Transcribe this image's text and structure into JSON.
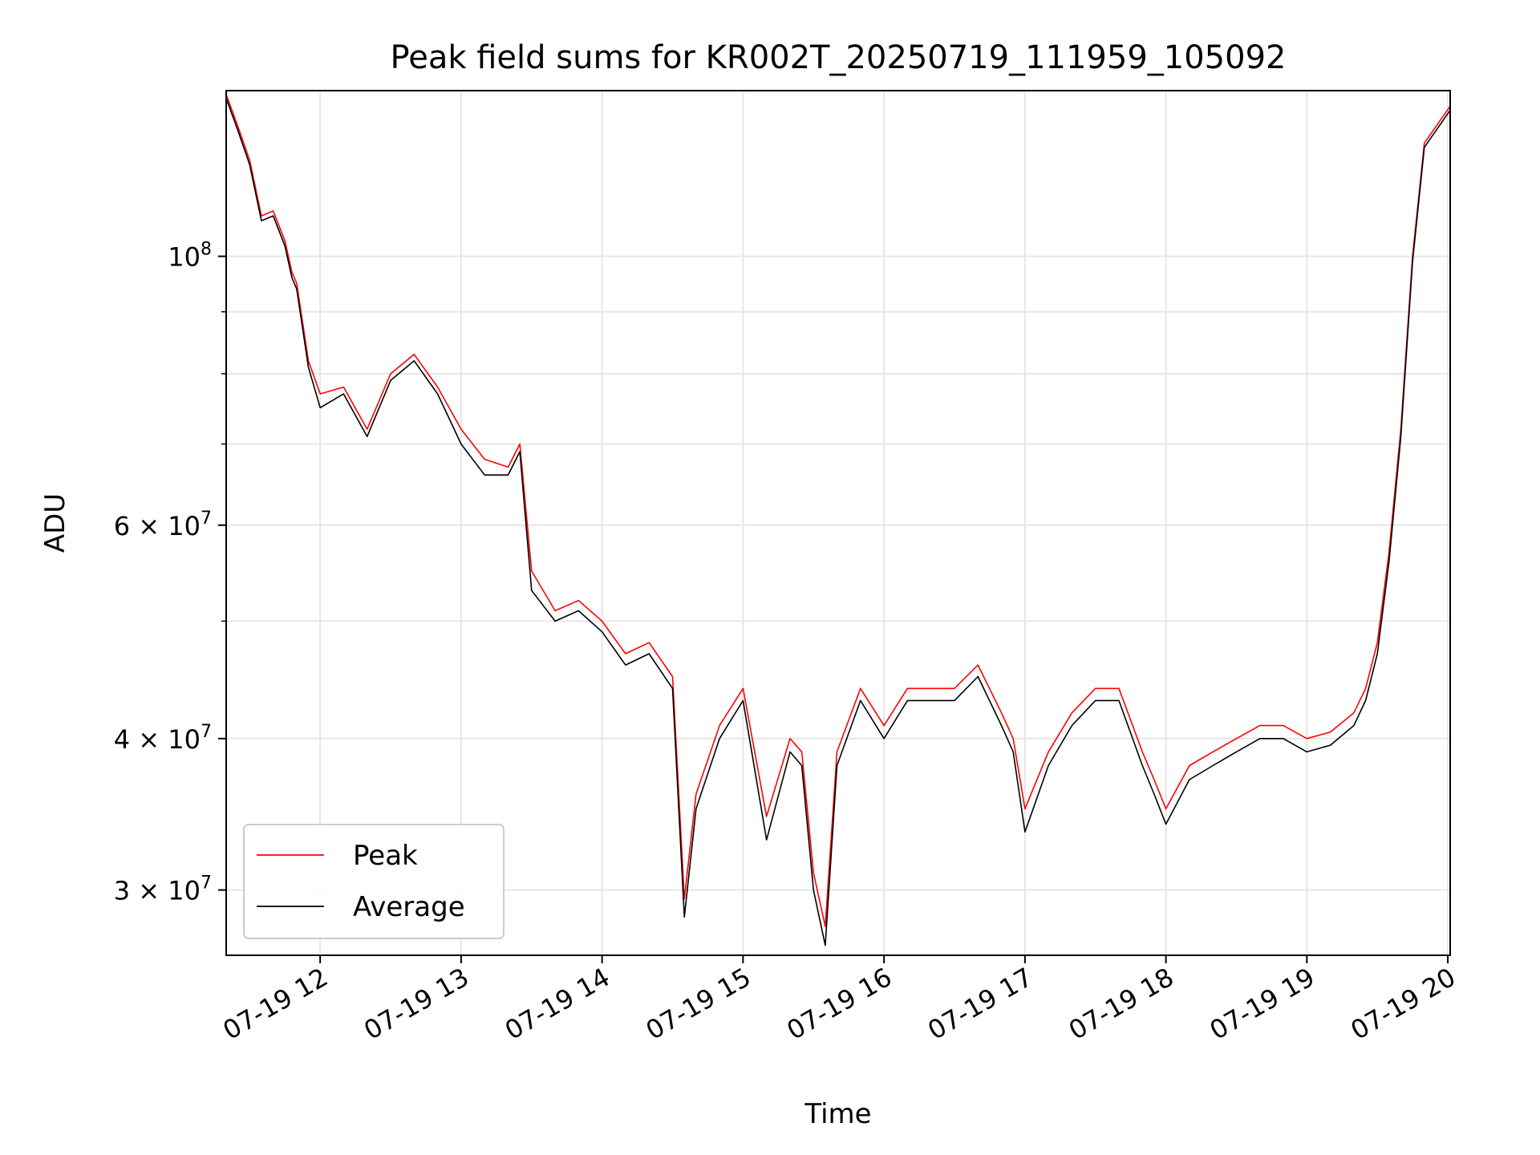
{
  "chart_data": {
    "type": "line",
    "title": "Peak field sums for KR002T_20250719_111959_105092",
    "xlabel": "Time",
    "ylabel": "ADU",
    "x_unit": "datetime",
    "xlim": [
      "2025-07-19 11:20",
      "2025-07-19 20:01"
    ],
    "ylim": [
      26500000,
      137000000
    ],
    "yscale": "log",
    "grid": true,
    "legend_position": "lower-left",
    "x_ticks": [
      {
        "value": "2025-07-19 12:00",
        "label": "07-19 12"
      },
      {
        "value": "2025-07-19 13:00",
        "label": "07-19 13"
      },
      {
        "value": "2025-07-19 14:00",
        "label": "07-19 14"
      },
      {
        "value": "2025-07-19 15:00",
        "label": "07-19 15"
      },
      {
        "value": "2025-07-19 16:00",
        "label": "07-19 16"
      },
      {
        "value": "2025-07-19 17:00",
        "label": "07-19 17"
      },
      {
        "value": "2025-07-19 18:00",
        "label": "07-19 18"
      },
      {
        "value": "2025-07-19 19:00",
        "label": "07-19 19"
      },
      {
        "value": "2025-07-19 20:00",
        "label": "07-19 20"
      }
    ],
    "y_ticks": [
      {
        "value": 30000000,
        "label_base": "3 × 10",
        "label_exp": "7"
      },
      {
        "value": 40000000,
        "label_base": "4 × 10",
        "label_exp": "7"
      },
      {
        "value": 60000000,
        "label_base": "6 × 10",
        "label_exp": "7"
      },
      {
        "value": 100000000,
        "label_base": "10",
        "label_exp": "8"
      }
    ],
    "y_minor_ticks": [
      50000000,
      70000000,
      80000000,
      90000000
    ],
    "x": [
      "2025-07-19 11:20",
      "2025-07-19 11:25",
      "2025-07-19 11:30",
      "2025-07-19 11:35",
      "2025-07-19 11:40",
      "2025-07-19 11:45",
      "2025-07-19 11:48",
      "2025-07-19 11:50",
      "2025-07-19 11:55",
      "2025-07-19 12:00",
      "2025-07-19 12:10",
      "2025-07-19 12:20",
      "2025-07-19 12:30",
      "2025-07-19 12:40",
      "2025-07-19 12:50",
      "2025-07-19 13:00",
      "2025-07-19 13:10",
      "2025-07-19 13:20",
      "2025-07-19 13:25",
      "2025-07-19 13:30",
      "2025-07-19 13:40",
      "2025-07-19 13:50",
      "2025-07-19 14:00",
      "2025-07-19 14:10",
      "2025-07-19 14:20",
      "2025-07-19 14:30",
      "2025-07-19 14:35",
      "2025-07-19 14:40",
      "2025-07-19 14:50",
      "2025-07-19 15:00",
      "2025-07-19 15:10",
      "2025-07-19 15:20",
      "2025-07-19 15:25",
      "2025-07-19 15:30",
      "2025-07-19 15:35",
      "2025-07-19 15:40",
      "2025-07-19 15:50",
      "2025-07-19 16:00",
      "2025-07-19 16:10",
      "2025-07-19 16:20",
      "2025-07-19 16:30",
      "2025-07-19 16:40",
      "2025-07-19 16:50",
      "2025-07-19 16:55",
      "2025-07-19 17:00",
      "2025-07-19 17:10",
      "2025-07-19 17:20",
      "2025-07-19 17:30",
      "2025-07-19 17:40",
      "2025-07-19 17:50",
      "2025-07-19 17:55",
      "2025-07-19 18:00",
      "2025-07-19 18:10",
      "2025-07-19 18:20",
      "2025-07-19 18:30",
      "2025-07-19 18:40",
      "2025-07-19 18:50",
      "2025-07-19 19:00",
      "2025-07-19 19:10",
      "2025-07-19 19:20",
      "2025-07-19 19:25",
      "2025-07-19 19:30",
      "2025-07-19 19:35",
      "2025-07-19 19:40",
      "2025-07-19 19:45",
      "2025-07-19 19:50",
      "2025-07-19 19:55",
      "2025-07-19 20:01"
    ],
    "series": [
      {
        "name": "Peak",
        "color": "#ff0000",
        "values": [
          136000000,
          128000000,
          120000000,
          108000000,
          109000000,
          103000000,
          97000000,
          95000000,
          82000000,
          77000000,
          78000000,
          72000000,
          80000000,
          83000000,
          78000000,
          72000000,
          68000000,
          67000000,
          70000000,
          55000000,
          51000000,
          52000000,
          50000000,
          47000000,
          48000000,
          45000000,
          29500000,
          36000000,
          41000000,
          44000000,
          34500000,
          40000000,
          39000000,
          31000000,
          28000000,
          39000000,
          44000000,
          41000000,
          44000000,
          44000000,
          44000000,
          46000000,
          42000000,
          40000000,
          35000000,
          39000000,
          42000000,
          44000000,
          44000000,
          39000000,
          37000000,
          35000000,
          38000000,
          39000000,
          40000000,
          41000000,
          41000000,
          40000000,
          40500000,
          42000000,
          44000000,
          48000000,
          57000000,
          72000000,
          100000000,
          124000000,
          128000000,
          133000000
        ]
      },
      {
        "name": "Average",
        "color": "#000000",
        "values": [
          135000000,
          127000000,
          119000000,
          107000000,
          108000000,
          102000000,
          96000000,
          94000000,
          81000000,
          75000000,
          77000000,
          71000000,
          79000000,
          82000000,
          77000000,
          70000000,
          66000000,
          66000000,
          69000000,
          53000000,
          50000000,
          51000000,
          49000000,
          46000000,
          47000000,
          44000000,
          28500000,
          35000000,
          40000000,
          43000000,
          33000000,
          39000000,
          38000000,
          30000000,
          27000000,
          38000000,
          43000000,
          40000000,
          43000000,
          43000000,
          43000000,
          45000000,
          41000000,
          39000000,
          33500000,
          38000000,
          41000000,
          43000000,
          43000000,
          38000000,
          36000000,
          34000000,
          37000000,
          38000000,
          39000000,
          40000000,
          40000000,
          39000000,
          39500000,
          41000000,
          43000000,
          47000000,
          56000000,
          71000000,
          99000000,
          123000000,
          127000000,
          132000000
        ]
      }
    ]
  }
}
